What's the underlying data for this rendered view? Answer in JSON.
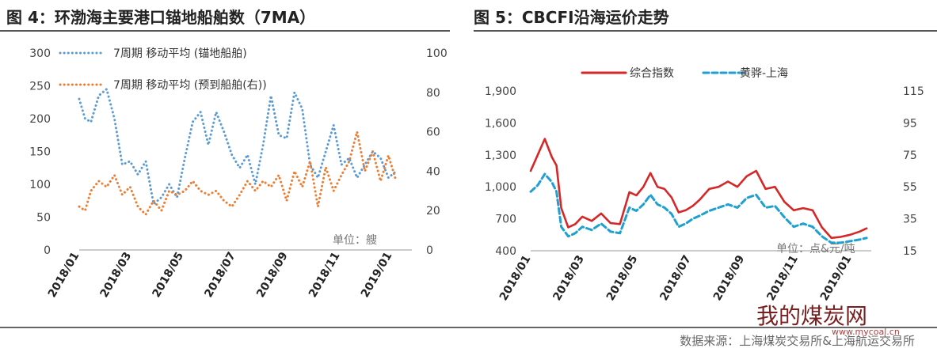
{
  "titles": {
    "left": "图 4：环渤海主要港口锚地船舶数（7MA）",
    "right": "图 5：CBCFI沿海运价走势"
  },
  "source": "数据来源：上海煤炭交易所&上海航运交易所",
  "watermark": {
    "text": "我的煤炭网",
    "url": "www.mycoal.cn"
  },
  "chart_data": [
    {
      "type": "line",
      "title": "环渤海主要港口锚地船舶数（7MA）",
      "ylim": [
        0,
        300
      ],
      "y2lim": [
        0,
        100
      ],
      "y_ticks": [
        "0",
        "50",
        "100",
        "150",
        "200",
        "250",
        "300"
      ],
      "y2_ticks": [
        "0",
        "20",
        "40",
        "60",
        "80",
        "100"
      ],
      "x_ticks": [
        "2018/01",
        "2018/03",
        "2018/05",
        "2018/07",
        "2018/09",
        "2018/11",
        "2019/01"
      ],
      "note": "单位：艘",
      "x_range": [
        0,
        17
      ],
      "series": [
        {
          "name": "7周期 移动平均 (锚地船舶)",
          "axis": "left",
          "color": "#5b9bd5",
          "style": "dotted",
          "x": [
            0,
            0.3,
            0.6,
            1,
            1.4,
            1.8,
            2.2,
            2.6,
            3,
            3.4,
            3.8,
            4.2,
            4.6,
            5,
            5.4,
            5.8,
            6.2,
            6.6,
            7,
            7.4,
            7.8,
            8.2,
            8.6,
            9,
            9.4,
            9.8,
            10.2,
            10.6,
            11,
            11.4,
            11.8,
            12.2,
            12.6,
            13,
            13.4,
            13.8,
            14.2,
            14.6,
            15,
            15.4,
            15.8,
            16.2
          ],
          "values": [
            230,
            200,
            195,
            235,
            245,
            200,
            130,
            135,
            115,
            135,
            70,
            80,
            100,
            80,
            140,
            195,
            210,
            160,
            210,
            180,
            145,
            125,
            145,
            100,
            160,
            235,
            175,
            170,
            240,
            215,
            130,
            110,
            150,
            190,
            130,
            140,
            110,
            130,
            150,
            140,
            110,
            120
          ]
        },
        {
          "name": "7周期 移动平均 (预到船舶(右))",
          "axis": "right",
          "color": "#ed7d31",
          "style": "dotted",
          "x": [
            0,
            0.3,
            0.6,
            1,
            1.4,
            1.8,
            2.2,
            2.6,
            3,
            3.4,
            3.8,
            4.2,
            4.6,
            5,
            5.4,
            5.8,
            6.2,
            6.6,
            7,
            7.4,
            7.8,
            8.2,
            8.6,
            9,
            9.4,
            9.8,
            10.2,
            10.6,
            11,
            11.4,
            11.8,
            12.2,
            12.6,
            13,
            13.4,
            13.8,
            14.2,
            14.6,
            15,
            15.4,
            15.8,
            16.2
          ],
          "values": [
            22,
            20,
            30,
            35,
            32,
            38,
            28,
            32,
            22,
            18,
            25,
            20,
            30,
            28,
            30,
            35,
            30,
            28,
            30,
            25,
            22,
            28,
            35,
            30,
            35,
            32,
            38,
            25,
            40,
            32,
            45,
            22,
            42,
            30,
            38,
            45,
            60,
            40,
            50,
            35,
            48,
            35
          ]
        }
      ]
    },
    {
      "type": "line",
      "title": "CBCFI沿海运价走势",
      "ylim": [
        400,
        1900
      ],
      "y2lim": [
        15,
        115
      ],
      "y_ticks": [
        "400",
        "700",
        "1,000",
        "1,300",
        "1,600",
        "1,900"
      ],
      "y2_ticks": [
        "15",
        "35",
        "55",
        "75",
        "95",
        "115"
      ],
      "x_ticks": [
        "2018/01",
        "2018/03",
        "2018/05",
        "2018/07",
        "2018/09",
        "2018/11",
        "2019/01"
      ],
      "note": "单位：点&元/吨",
      "x_range": [
        0,
        14.5
      ],
      "series": [
        {
          "name": "综合指数",
          "axis": "left",
          "color": "#d62728",
          "style": "solid",
          "x": [
            0,
            0.3,
            0.6,
            0.9,
            1.1,
            1.3,
            1.6,
            1.9,
            2.2,
            2.6,
            3,
            3.4,
            3.8,
            4.2,
            4.5,
            4.8,
            5.1,
            5.4,
            5.7,
            6,
            6.3,
            6.6,
            6.9,
            7.2,
            7.6,
            8,
            8.4,
            8.8,
            9.2,
            9.6,
            10,
            10.4,
            10.8,
            11.2,
            11.6,
            12,
            12.4,
            12.8,
            13.2,
            13.6,
            14,
            14.3
          ],
          "values": [
            1150,
            1300,
            1450,
            1280,
            1200,
            800,
            620,
            650,
            720,
            680,
            750,
            660,
            650,
            950,
            920,
            1000,
            1130,
            1000,
            980,
            900,
            760,
            780,
            820,
            880,
            980,
            1000,
            1050,
            1000,
            1100,
            1150,
            980,
            1000,
            860,
            780,
            800,
            780,
            620,
            520,
            530,
            550,
            580,
            610
          ]
        },
        {
          "name": "黄骅-上海",
          "axis": "right",
          "color": "#1ea0d0",
          "style": "dashed",
          "x": [
            0,
            0.3,
            0.6,
            0.9,
            1.1,
            1.3,
            1.6,
            1.9,
            2.2,
            2.6,
            3,
            3.4,
            3.8,
            4.2,
            4.5,
            4.8,
            5.1,
            5.4,
            5.7,
            6,
            6.3,
            6.6,
            6.9,
            7.2,
            7.6,
            8,
            8.4,
            8.8,
            9.2,
            9.6,
            10,
            10.4,
            10.8,
            11.2,
            11.6,
            12,
            12.4,
            12.8,
            13.2,
            13.6,
            14,
            14.3
          ],
          "values": [
            52,
            56,
            63,
            58,
            52,
            30,
            24,
            26,
            30,
            28,
            32,
            27,
            26,
            42,
            40,
            44,
            50,
            44,
            42,
            38,
            30,
            32,
            35,
            37,
            40,
            42,
            44,
            42,
            48,
            50,
            42,
            43,
            36,
            30,
            32,
            30,
            24,
            20,
            20,
            21,
            22,
            23
          ]
        }
      ]
    }
  ]
}
